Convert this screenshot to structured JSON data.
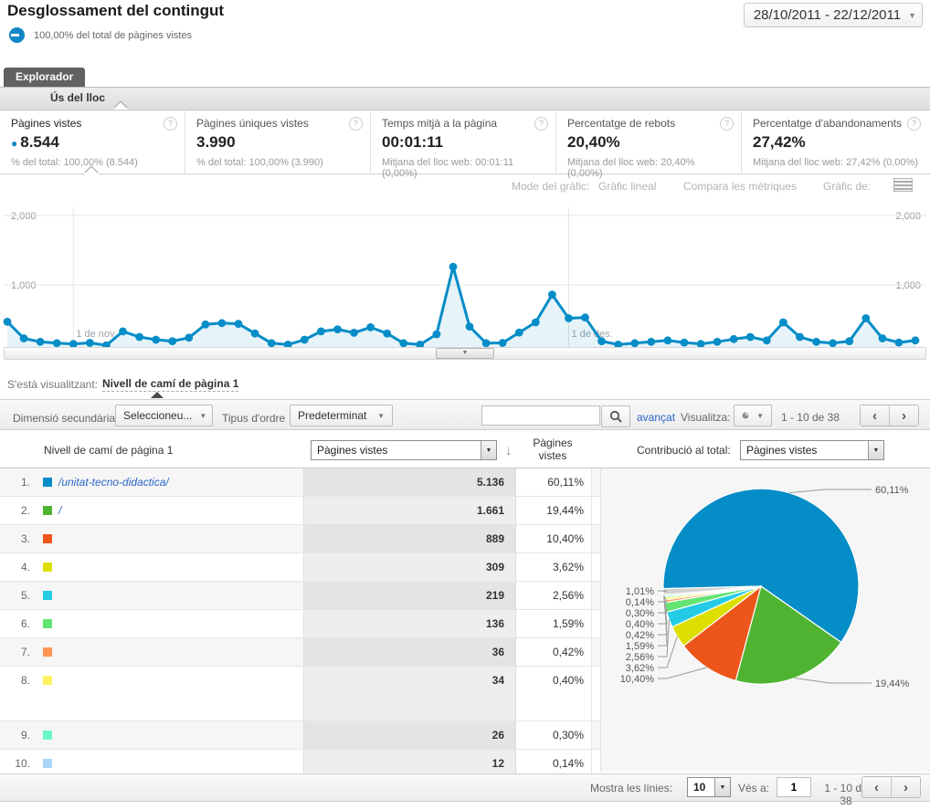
{
  "header": {
    "title": "Desglossament del contingut",
    "segment_pct": "100,00% del total de pàgines vistes",
    "date_range": "28/10/2011 - 22/12/2011"
  },
  "tabs": {
    "explorer": "Explorador",
    "usage": "Ús del lloc"
  },
  "metrics": [
    {
      "title": "Pàgines vistes",
      "value": "8.544",
      "note": "% del total: 100,00% (8.544)"
    },
    {
      "title": "Pàgines úniques vistes",
      "value": "3.990",
      "note": "% del total: 100,00% (3.990)"
    },
    {
      "title": "Temps mitjà a la pàgina",
      "value": "00:01:11",
      "note": "Mitjana del lloc web: 00:01:11 (0,00%)"
    },
    {
      "title": "Percentatge de rebots",
      "value": "20,40%",
      "note": "Mitjana del lloc web: 20,40% (0,00%)"
    },
    {
      "title": "Percentatge d'abandonaments",
      "value": "27,42%",
      "note": "Mitjana del lloc web: 27,42% (0,00%)"
    }
  ],
  "chart_controls": {
    "mode_label": "Mode del gràfic:",
    "mode_value": "Gràfic lineal",
    "compare": "Compara les mètriques",
    "graph_of": "Gràfic de:"
  },
  "axis": {
    "top": "2,000",
    "mid": "1,000"
  },
  "chart_data": [
    {
      "type": "line",
      "name": "Pàgines vistes per dia",
      "date_start": "28/10/2011",
      "date_end": "22/12/2011",
      "line_color": "#058DC7",
      "ylim": [
        0,
        2000
      ],
      "ytick_labels": [
        "1,000",
        "2,000"
      ],
      "grid": true,
      "x_gridlines": [
        {
          "index": 4,
          "label": "1 de nov."
        },
        {
          "index": 34,
          "label": "1 de des."
        }
      ],
      "values": [
        470,
        230,
        180,
        160,
        150,
        165,
        130,
        330,
        250,
        210,
        190,
        240,
        430,
        450,
        440,
        300,
        160,
        140,
        210,
        330,
        360,
        310,
        390,
        300,
        160,
        140,
        290,
        1260,
        400,
        160,
        165,
        315,
        460,
        860,
        520,
        530,
        190,
        140,
        160,
        180,
        200,
        170,
        150,
        180,
        220,
        250,
        200,
        460,
        250,
        180,
        160,
        190,
        520,
        230,
        170,
        200
      ]
    },
    {
      "type": "pie",
      "metric": "Pàgines vistes",
      "legend_position": "callouts",
      "slices": [
        {
          "label": "/unitat-tecno-didactica/",
          "value": 5136,
          "pct": 60.11,
          "pct_label": "60,11%",
          "color": "#058DC7"
        },
        {
          "label": "/",
          "value": 1661,
          "pct": 19.44,
          "pct_label": "19,44%",
          "color": "#50B432"
        },
        {
          "label": "",
          "value": 889,
          "pct": 10.4,
          "pct_label": "10,40%",
          "color": "#ED561B"
        },
        {
          "label": "",
          "value": 309,
          "pct": 3.62,
          "pct_label": "3,62%",
          "color": "#DDDF00"
        },
        {
          "label": "",
          "value": 219,
          "pct": 2.56,
          "pct_label": "2,56%",
          "color": "#24CBE5"
        },
        {
          "label": "",
          "value": 136,
          "pct": 1.59,
          "pct_label": "1,59%",
          "color": "#64E572"
        },
        {
          "label": "",
          "value": 36,
          "pct": 0.42,
          "pct_label": "0,42%",
          "color": "#FF9655"
        },
        {
          "label": "",
          "value": 34,
          "pct": 0.4,
          "pct_label": "0,40%",
          "color": "#FFF263"
        },
        {
          "label": "",
          "value": 26,
          "pct": 0.3,
          "pct_label": "0,30%",
          "color": "#6AF9C4"
        },
        {
          "label": "",
          "value": 12,
          "pct": 0.14,
          "pct_label": "0,14%",
          "color": "#AAD6F7"
        }
      ],
      "others": {
        "pct": 1.01,
        "pct_label": "1,01%",
        "color": "#D2D2D2"
      }
    }
  ],
  "viewing": {
    "label": "S'està visualitzant:",
    "value": "Nivell de camí de pàgina 1"
  },
  "toolbar": {
    "secondary_dim_label": "Dimensió secundària:",
    "secondary_dim_value": "Seleccioneu...",
    "sort_label": "Tipus d'ordre",
    "sort_value": "Predeterminat",
    "search_value": "",
    "advanced": "avançat",
    "view_label": "Visualitza:",
    "range": "1 - 10 de 38",
    "prev": "‹",
    "next": "›"
  },
  "table": {
    "dimension_header": "Nivell de camí de pàgina 1",
    "metric_select": "Pàgines vistes",
    "metric_col_line1": "Pàgines",
    "metric_col_line2": "vistes",
    "contribution_label": "Contribució al total:",
    "contribution_select": "Pàgines vistes",
    "rows": [
      {
        "index": "1.",
        "label": "/unitat-tecno-didactica/",
        "value": "5.136",
        "pct": "60,11%",
        "color": "#058DC7",
        "tall": false
      },
      {
        "index": "2.",
        "label": "/",
        "value": "1.661",
        "pct": "19,44%",
        "color": "#50B432",
        "tall": false
      },
      {
        "index": "3.",
        "label": "",
        "value": "889",
        "pct": "10,40%",
        "color": "#ED561B",
        "tall": false
      },
      {
        "index": "4.",
        "label": "",
        "value": "309",
        "pct": "3,62%",
        "color": "#DDDF00",
        "tall": false
      },
      {
        "index": "5.",
        "label": "",
        "value": "219",
        "pct": "2,56%",
        "color": "#24CBE5",
        "tall": false
      },
      {
        "index": "6.",
        "label": "",
        "value": "136",
        "pct": "1,59%",
        "color": "#64E572",
        "tall": false
      },
      {
        "index": "7.",
        "label": "",
        "value": "36",
        "pct": "0,42%",
        "color": "#FF9655",
        "tall": false
      },
      {
        "index": "8.",
        "label": "",
        "value": "34",
        "pct": "0,40%",
        "color": "#FFF263",
        "tall": true
      },
      {
        "index": "9.",
        "label": "",
        "value": "26",
        "pct": "0,30%",
        "color": "#6AF9C4",
        "tall": false
      },
      {
        "index": "10.",
        "label": "",
        "value": "12",
        "pct": "0,14%",
        "color": "#AAD6F7",
        "tall": false
      }
    ]
  },
  "footer": {
    "rows_label": "Mostra les línies:",
    "rows_value": "10",
    "goto_label": "Vés a:",
    "goto_value": "1",
    "range": "1 - 10 de 38",
    "prev": "‹",
    "next": "›"
  }
}
